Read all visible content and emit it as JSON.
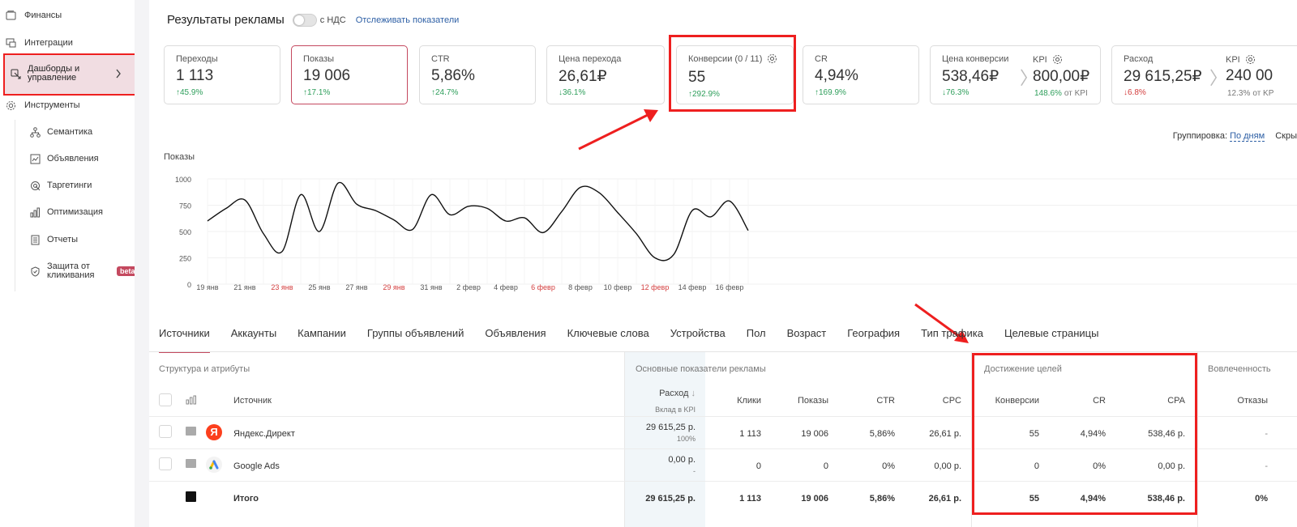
{
  "sidebar": {
    "items": [
      {
        "label": "Финансы",
        "icon": "wallet-icon"
      },
      {
        "label": "Интеграции",
        "icon": "integration-icon"
      },
      {
        "label": "Дашборды и управление",
        "icon": "dashboard-icon"
      },
      {
        "label": "Инструменты",
        "icon": "gear-icon"
      }
    ],
    "subitems": [
      {
        "label": "Семантика",
        "icon": "semantics-icon"
      },
      {
        "label": "Объявления",
        "icon": "ads-icon"
      },
      {
        "label": "Таргетинги",
        "icon": "target-icon"
      },
      {
        "label": "Оптимизация",
        "icon": "bars-icon"
      },
      {
        "label": "Отчеты",
        "icon": "report-icon"
      },
      {
        "label": "Защита от кликивания",
        "icon": "shield-icon",
        "badge": "beta"
      }
    ]
  },
  "header": {
    "title": "Результаты рекламы",
    "vat_label": "с НДС",
    "track_link": "Отслеживать показатели",
    "grouping_label": "Группировка:",
    "grouping_value": "По дням",
    "hide_label": "Скры"
  },
  "cards": [
    {
      "label": "Переходы",
      "value": "1 113",
      "delta": "↑45.9%",
      "trend": "up"
    },
    {
      "label": "Показы",
      "value": "19 006",
      "delta": "↑17.1%",
      "trend": "up"
    },
    {
      "label": "CTR",
      "value": "5,86%",
      "delta": "↑24.7%",
      "trend": "up"
    },
    {
      "label": "Цена перехода",
      "value": "26,61₽",
      "delta": "↓36.1%",
      "trend": "up"
    },
    {
      "label": "Конверсии (0 / 11)",
      "value": "55",
      "delta": "↑292.9%",
      "trend": "up"
    },
    {
      "label": "CR",
      "value": "4,94%",
      "delta": "↑169.9%",
      "trend": "up"
    },
    {
      "label": "Цена конверсии",
      "value": "538,46₽",
      "delta": "↓76.3%",
      "trend": "up",
      "kpi_label": "KPI",
      "kpi_value": "800,00₽",
      "kpi_pct": "148.6%",
      "kpi_note": "от KPI"
    },
    {
      "label": "Расход",
      "value": "29 615,25₽",
      "delta": "↓6.8%",
      "trend": "down",
      "kpi_label": "KPI",
      "kpi_value": "240 00",
      "kpi_pct": "12.3%",
      "kpi_note": "от KP"
    }
  ],
  "chart_data": {
    "type": "line",
    "ylabel": "Показы",
    "ylim": [
      0,
      1000
    ],
    "yticks": [
      0,
      250,
      500,
      750,
      1000
    ],
    "x_ticks": [
      {
        "label": "19 янв",
        "weekend": false
      },
      {
        "label": "21 янв",
        "weekend": false
      },
      {
        "label": "23 янв",
        "weekend": true
      },
      {
        "label": "25 янв",
        "weekend": false
      },
      {
        "label": "27 янв",
        "weekend": false
      },
      {
        "label": "29 янв",
        "weekend": true
      },
      {
        "label": "31 янв",
        "weekend": false
      },
      {
        "label": "2 февр",
        "weekend": false
      },
      {
        "label": "4 февр",
        "weekend": false
      },
      {
        "label": "6 февр",
        "weekend": true
      },
      {
        "label": "8 февр",
        "weekend": false
      },
      {
        "label": "10 февр",
        "weekend": false
      },
      {
        "label": "12 февр",
        "weekend": true
      },
      {
        "label": "14 февр",
        "weekend": false
      },
      {
        "label": "16 февр",
        "weekend": false
      }
    ],
    "series": [
      {
        "values": [
          600,
          720,
          800,
          480,
          310,
          850,
          500,
          960,
          760,
          700,
          610,
          520,
          850,
          660,
          740,
          720,
          600,
          630,
          490,
          690,
          920,
          870,
          680,
          480,
          250,
          280,
          700,
          640,
          790,
          510
        ]
      }
    ]
  },
  "tabs": [
    "Источники",
    "Аккаунты",
    "Кампании",
    "Группы объявлений",
    "Объявления",
    "Ключевые слова",
    "Устройства",
    "Пол",
    "Возраст",
    "География",
    "Тип трафика",
    "Целевые страницы"
  ],
  "table": {
    "groups": {
      "structure": "Структура и атрибуты",
      "main": "Основные показатели рекламы",
      "goals": "Достижение целей",
      "engagement": "Вовлеченность"
    },
    "headers": {
      "source": "Источник",
      "spend": "Расход",
      "spend_sub": "Вклад в KPI",
      "clicks": "Клики",
      "shows": "Показы",
      "ctr": "CTR",
      "cpc": "CPC",
      "conversions": "Конверсии",
      "cr": "CR",
      "cpa": "CPA",
      "bounces": "Отказы"
    },
    "rows": [
      {
        "source": "Яндекс.Директ",
        "icon": "yandex-icon",
        "spend": "29 615,25 р.",
        "spend_sub": "100%",
        "clicks": "1 113",
        "shows": "19 006",
        "ctr": "5,86%",
        "cpc": "26,61 р.",
        "conversions": "55",
        "cr": "4,94%",
        "cpa": "538,46 р.",
        "bounces": "-"
      },
      {
        "source": "Google Ads",
        "icon": "google-ads-icon",
        "spend": "0,00 р.",
        "spend_sub": "-",
        "clicks": "0",
        "shows": "0",
        "ctr": "0%",
        "cpc": "0,00 р.",
        "conversions": "0",
        "cr": "0%",
        "cpa": "0,00 р.",
        "bounces": "-"
      }
    ],
    "total": {
      "source": "Итого",
      "spend": "29 615,25 р.",
      "clicks": "1 113",
      "shows": "19 006",
      "ctr": "5,86%",
      "cpc": "26,61 р.",
      "conversions": "55",
      "cr": "4,94%",
      "cpa": "538,46 р.",
      "bounces": "0%"
    }
  },
  "colors": {
    "accent": "#c4495f",
    "highlight": "#ee1f1f",
    "link": "#2d5fa5",
    "up": "#2e9e5b",
    "down": "#d33d3d"
  }
}
